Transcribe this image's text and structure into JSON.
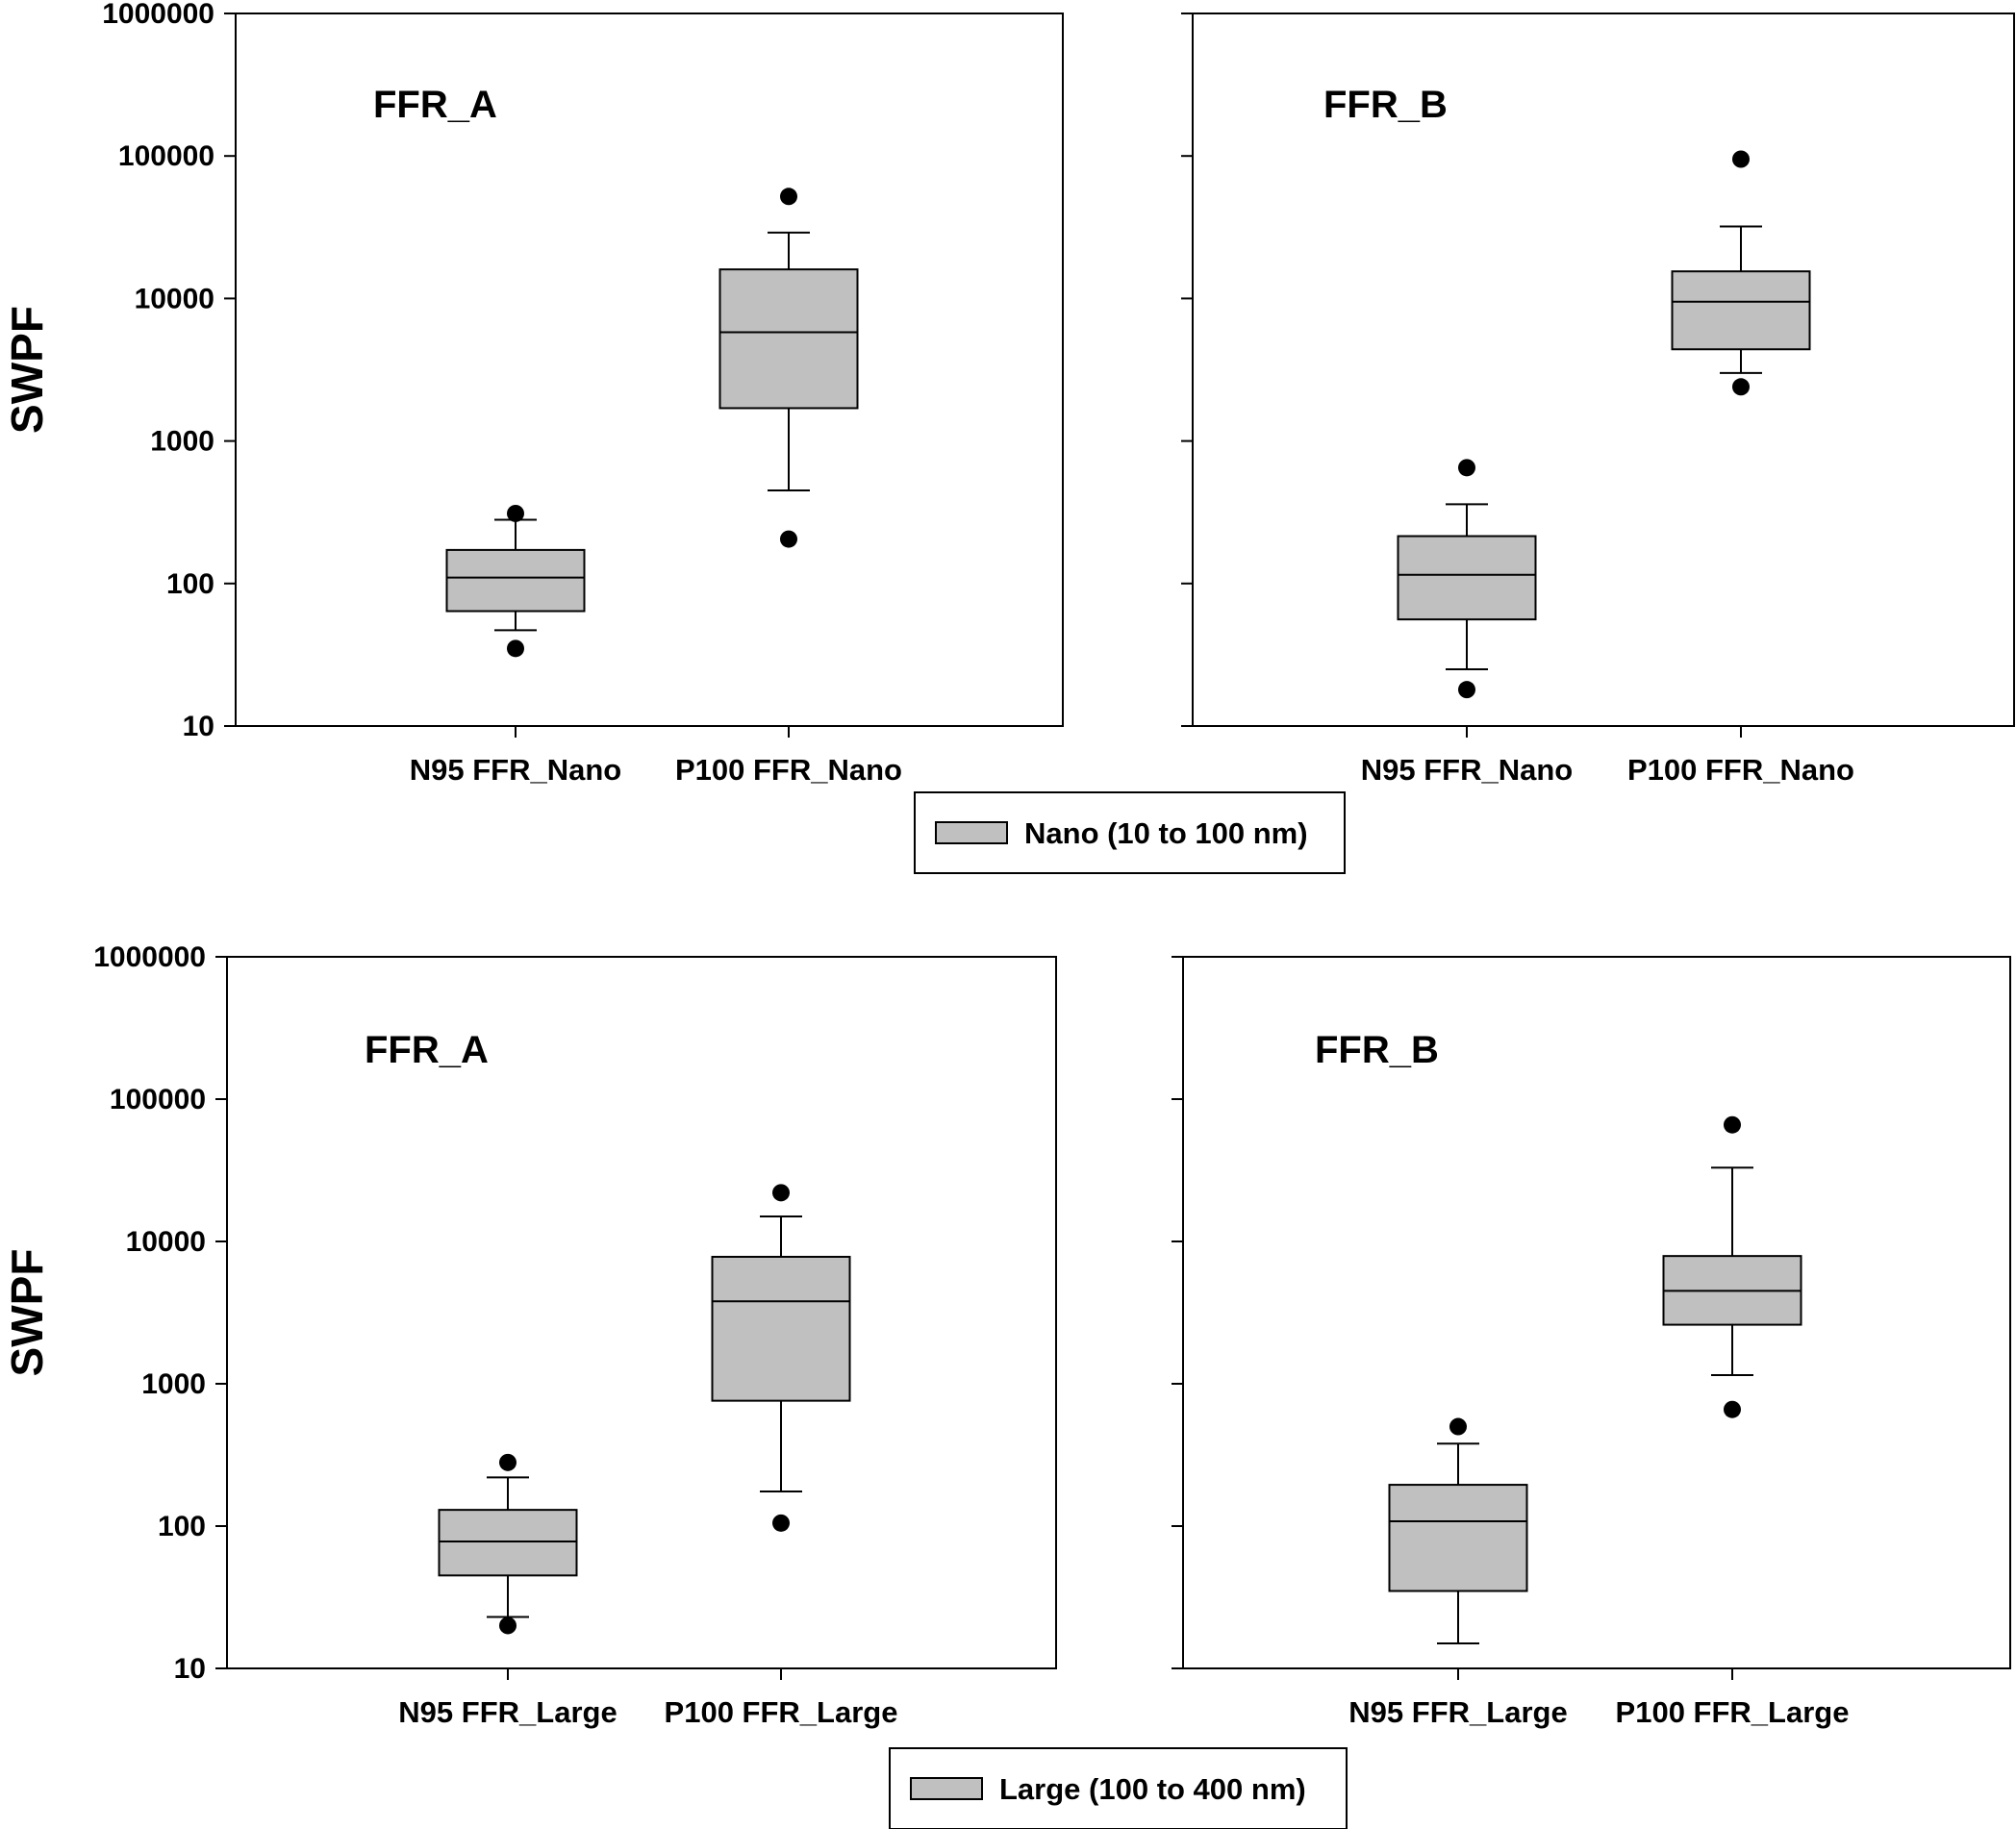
{
  "chart_data": [
    {
      "type": "box",
      "title": "FFR_A",
      "ylabel": "SWPF",
      "yscale": "log",
      "ylim": [
        10,
        1000000
      ],
      "yticks": [
        "10",
        "100",
        "1000",
        "10000",
        "100000",
        "1000000"
      ],
      "show_ytick_labels": true,
      "categories": [
        "N95 FFR_Nano",
        "P100 FFR_Nano"
      ],
      "boxes": [
        {
          "whisker_low": 47,
          "q1": 64,
          "median": 110,
          "q3": 172,
          "whisker_high": 280,
          "outliers": [
            35,
            310
          ]
        },
        {
          "whisker_low": 450,
          "q1": 1700,
          "median": 5800,
          "q3": 16000,
          "whisker_high": 29000,
          "outliers": [
            205,
            52000
          ]
        }
      ],
      "legend": "Nano (10 to 100 nm)"
    },
    {
      "type": "box",
      "title": "FFR_B",
      "ylabel": "",
      "yscale": "log",
      "ylim": [
        10,
        1000000
      ],
      "yticks": [
        "10",
        "100",
        "1000",
        "10000",
        "100000",
        "1000000"
      ],
      "show_ytick_labels": false,
      "categories": [
        "N95 FFR_Nano",
        "P100 FFR_Nano"
      ],
      "boxes": [
        {
          "whisker_low": 25,
          "q1": 56,
          "median": 115,
          "q3": 215,
          "whisker_high": 360,
          "outliers": [
            18,
            650
          ]
        },
        {
          "whisker_low": 3000,
          "q1": 4400,
          "median": 9500,
          "q3": 15500,
          "whisker_high": 32000,
          "outliers": [
            2400,
            95000
          ]
        }
      ],
      "legend": "Nano (10 to 100 nm)"
    },
    {
      "type": "box",
      "title": "FFR_A",
      "ylabel": "SWPF",
      "yscale": "log",
      "ylim": [
        10,
        1000000
      ],
      "yticks": [
        "10",
        "100",
        "1000",
        "10000",
        "100000",
        "1000000"
      ],
      "show_ytick_labels": true,
      "categories": [
        "N95 FFR_Large",
        "P100 FFR_Large"
      ],
      "boxes": [
        {
          "whisker_low": 23,
          "q1": 45,
          "median": 78,
          "q3": 130,
          "whisker_high": 220,
          "outliers": [
            20,
            280
          ]
        },
        {
          "whisker_low": 175,
          "q1": 760,
          "median": 3800,
          "q3": 7800,
          "whisker_high": 15000,
          "outliers": [
            105,
            22000
          ]
        }
      ],
      "legend": "Large (100 to 400 nm)"
    },
    {
      "type": "box",
      "title": "FFR_B",
      "ylabel": "",
      "yscale": "log",
      "ylim": [
        10,
        1000000
      ],
      "yticks": [
        "10",
        "100",
        "1000",
        "10000",
        "100000",
        "1000000"
      ],
      "show_ytick_labels": false,
      "categories": [
        "N95 FFR_Large",
        "P100 FFR_Large"
      ],
      "boxes": [
        {
          "whisker_low": 15,
          "q1": 35,
          "median": 108,
          "q3": 195,
          "whisker_high": 380,
          "outliers": [
            500
          ]
        },
        {
          "whisker_low": 1150,
          "q1": 2600,
          "median": 4500,
          "q3": 7900,
          "whisker_high": 33000,
          "outliers": [
            660,
            66000
          ]
        }
      ],
      "legend": "Large (100 to 400 nm)"
    }
  ],
  "legends": [
    {
      "label": "Nano (10 to 100 nm)"
    },
    {
      "label": "Large (100 to 400 nm)"
    }
  ],
  "colors": {
    "box_fill": "#c0c0c0",
    "stroke": "#000000",
    "background": "#ffffff"
  }
}
